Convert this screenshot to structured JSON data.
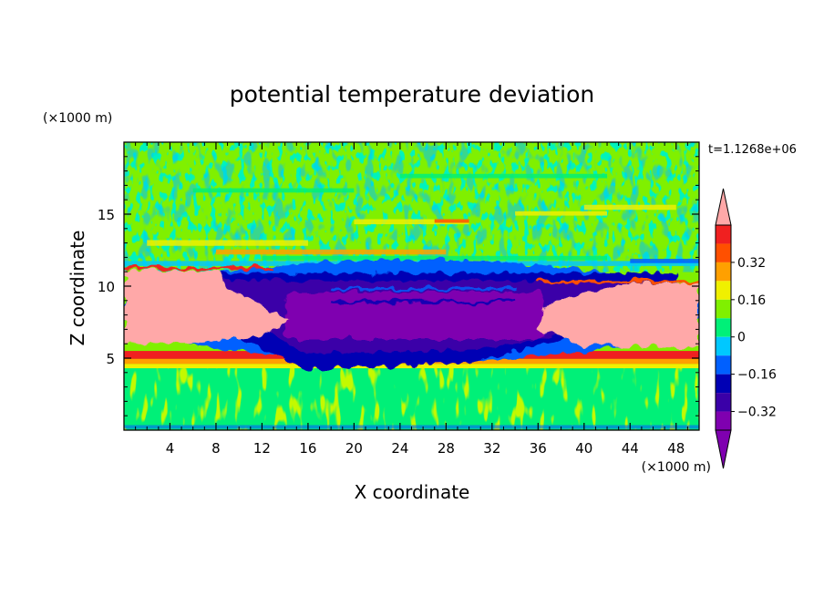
{
  "chart_data": {
    "type": "heatmap",
    "title": "potential temperature deviation",
    "xlabel": "X coordinate",
    "ylabel": "Z coordinate",
    "x_unit_label": "(×1000 m)",
    "y_unit_label": "(×1000 m)",
    "time_label": "t=1.1268e+06",
    "xlim": [
      0,
      50
    ],
    "ylim": [
      0,
      20
    ],
    "x_ticks": [
      4,
      8,
      12,
      16,
      20,
      24,
      28,
      32,
      36,
      40,
      44,
      48
    ],
    "y_ticks": [
      5,
      10,
      15
    ],
    "colorbar": {
      "levels": [
        -0.4,
        -0.32,
        -0.24,
        -0.16,
        -0.08,
        0,
        0.08,
        0.16,
        0.24,
        0.32,
        0.4
      ],
      "tick_labels": [
        "0.32",
        "0.16",
        "0",
        "−0.16",
        "−0.32"
      ],
      "tick_values": [
        0.32,
        0.16,
        0,
        -0.16,
        -0.32
      ],
      "colors": [
        "#7f00b0",
        "#3a00a8",
        "#0000b4",
        "#0060ff",
        "#00c8ff",
        "#00f078",
        "#80f000",
        "#f0f000",
        "#ffa000",
        "#ff5000",
        "#f02020"
      ],
      "over_color": "#ffa8a8",
      "under_color": "#7f00b0"
    },
    "features": [
      {
        "name": "lower boundary layer",
        "x": [
          0,
          50
        ],
        "z": [
          0.3,
          4.3
        ],
        "value": 0.02
      },
      {
        "name": "warm stable layer",
        "x": [
          0,
          50
        ],
        "z": [
          4.3,
          5.5
        ],
        "value": 0.3
      },
      {
        "name": "cold anomaly core",
        "x": [
          12,
          38
        ],
        "z": [
          6.3,
          9.5
        ],
        "value": -0.45
      },
      {
        "name": "warm anomaly left",
        "x": [
          0,
          14
        ],
        "z": [
          6.0,
          11.0
        ],
        "value": 0.45
      },
      {
        "name": "warm anomaly right",
        "x": [
          36,
          50
        ],
        "z": [
          5.5,
          10.2
        ],
        "value": 0.45
      },
      {
        "name": "upper wave layer",
        "x": [
          0,
          50
        ],
        "z": [
          11.0,
          20
        ],
        "value": 0.03
      }
    ]
  }
}
